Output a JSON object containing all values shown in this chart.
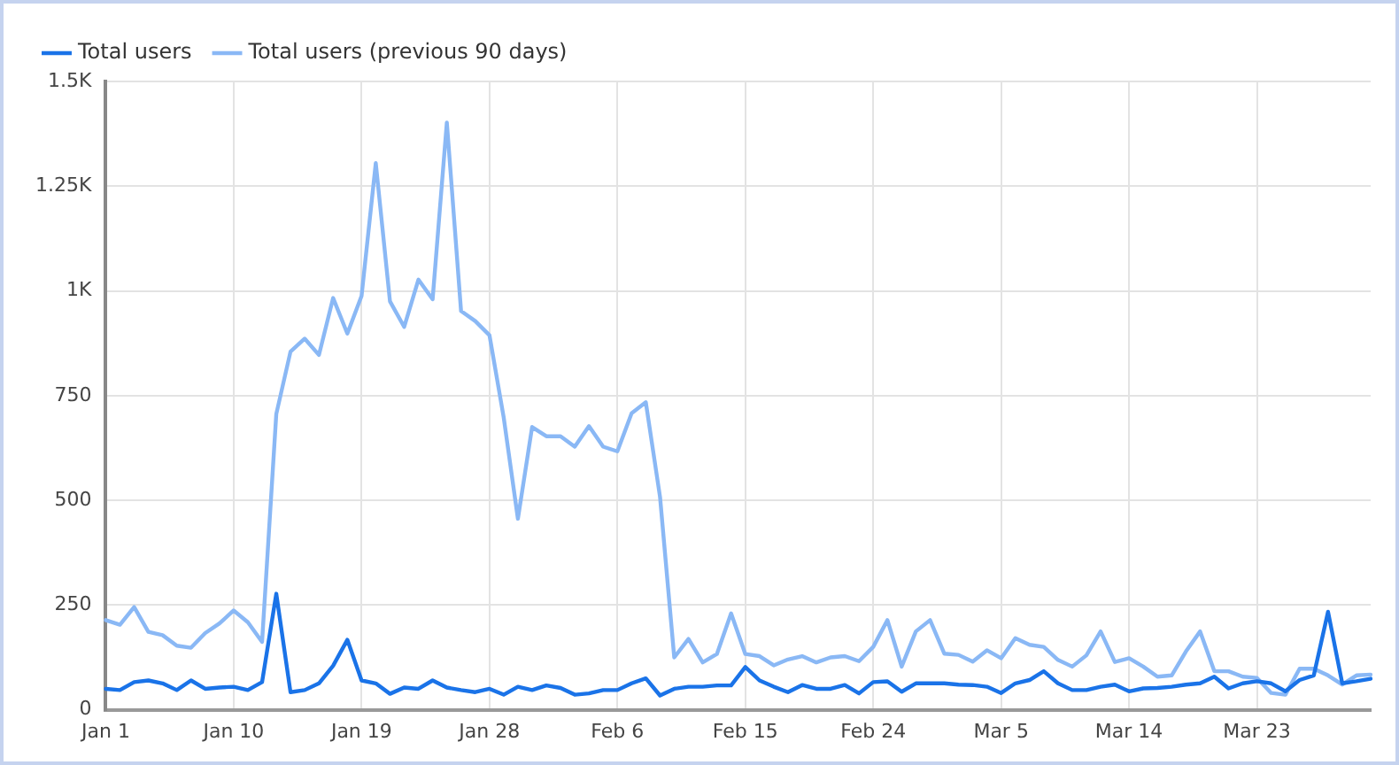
{
  "chart_data": {
    "type": "line",
    "categories": [
      "Jan 1",
      null,
      null,
      null,
      null,
      null,
      null,
      null,
      null,
      "Jan 10",
      null,
      null,
      null,
      null,
      null,
      null,
      null,
      null,
      "Jan 19",
      null,
      null,
      null,
      null,
      null,
      null,
      null,
      null,
      "Jan 28",
      null,
      null,
      null,
      null,
      null,
      null,
      null,
      null,
      "Feb 6",
      null,
      null,
      null,
      null,
      null,
      null,
      null,
      null,
      "Feb 15",
      null,
      null,
      null,
      null,
      null,
      null,
      null,
      null,
      "Feb 24",
      null,
      null,
      null,
      null,
      null,
      null,
      null,
      null,
      "Mar 5",
      null,
      null,
      null,
      null,
      null,
      null,
      null,
      null,
      "Mar 14",
      null,
      null,
      null,
      null,
      null,
      null,
      null,
      null,
      "Mar 23",
      null,
      null,
      null,
      null,
      null,
      null,
      null,
      null
    ],
    "series": [
      {
        "name": "Total users",
        "color": "#1a73e8",
        "values": [
          50,
          47,
          66,
          70,
          63,
          47,
          70,
          50,
          53,
          55,
          47,
          66,
          277,
          42,
          47,
          63,
          105,
          167,
          70,
          63,
          38,
          53,
          50,
          70,
          53,
          47,
          42,
          50,
          36,
          55,
          47,
          58,
          52,
          36,
          39,
          47,
          47,
          63,
          75,
          34,
          50,
          55,
          55,
          58,
          58,
          102,
          70,
          55,
          42,
          59,
          50,
          50,
          59,
          39,
          66,
          68,
          43,
          63,
          63,
          63,
          60,
          59,
          55,
          40,
          63,
          71,
          92,
          63,
          47,
          47,
          55,
          60,
          44,
          51,
          52,
          55,
          60,
          63,
          79,
          51,
          63,
          68,
          63,
          44,
          71,
          82,
          234,
          63,
          68,
          74
        ]
      },
      {
        "name": "Total users (previous 90 days)",
        "color": "#8ab8f5",
        "values": [
          214,
          203,
          245,
          186,
          178,
          153,
          148,
          183,
          206,
          237,
          209,
          162,
          706,
          855,
          886,
          847,
          983,
          898,
          988,
          1305,
          975,
          914,
          1027,
          980,
          1402,
          952,
          928,
          894,
          698,
          456,
          675,
          653,
          653,
          628,
          677,
          628,
          617,
          708,
          734,
          508,
          125,
          169,
          113,
          133,
          230,
          133,
          128,
          106,
          120,
          128,
          113,
          125,
          128,
          116,
          150,
          214,
          103,
          187,
          214,
          134,
          131,
          115,
          142,
          123,
          171,
          155,
          150,
          119,
          103,
          130,
          187,
          114,
          123,
          103,
          79,
          82,
          139,
          187,
          92,
          92,
          79,
          76,
          40,
          36,
          98,
          98,
          82,
          60,
          82,
          84
        ]
      }
    ],
    "ylim": [
      0,
      1500
    ],
    "yticks": [
      0,
      {
        "value": 250,
        "label": "250"
      },
      {
        "value": 500,
        "label": "500"
      },
      {
        "value": 750,
        "label": "750"
      },
      {
        "value": 1000,
        "label": "1K"
      },
      {
        "value": 1250,
        "label": "1.25K"
      },
      {
        "value": 1500,
        "label": "1.5K"
      }
    ],
    "grid": true,
    "legend": "top left",
    "marker": "none",
    "line_style": "solid"
  }
}
